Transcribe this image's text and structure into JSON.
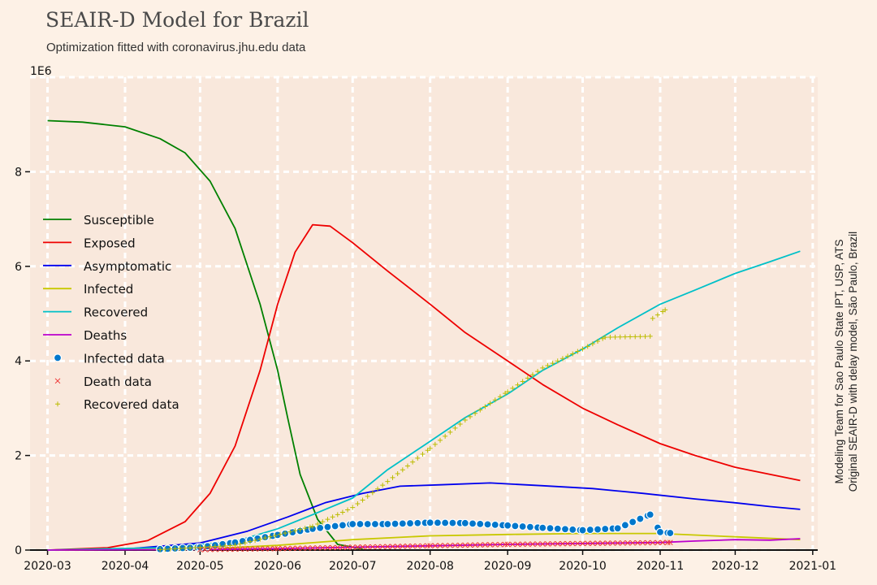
{
  "title": "SEAIR-D Model for Brazil",
  "subtitle": "Optimization fitted with coronavirus.jhu.edu data",
  "side_note": [
    "Modeling Team for Sao Paulo State IPT, USP, ATS",
    "Original SEAIR-D with delay model, São Paulo, Brazil"
  ],
  "colors": {
    "background": "#fdf1e6",
    "plot_bg": "#f9e8dc",
    "grid": "#ffffff"
  },
  "chart_data": {
    "type": "line",
    "title": "SEAIR-D Model for Brazil",
    "xlabel": "",
    "ylabel": "",
    "y_multiplier_label": "1E6",
    "xlim": [
      "2020-02-23",
      "2021-01-03"
    ],
    "ylim": [
      0,
      10
    ],
    "grid": true,
    "legend_position": "center-left",
    "x_ticks": [
      "2020-03",
      "2020-04",
      "2020-05",
      "2020-06",
      "2020-07",
      "2020-08",
      "2020-09",
      "2020-10",
      "2020-11",
      "2020-12",
      "2021-01"
    ],
    "y_ticks": [
      0,
      2,
      4,
      6,
      8
    ],
    "series": [
      {
        "name": "Susceptible",
        "color": "#008000",
        "style": "line",
        "points": [
          [
            "2020-03-01",
            9.08
          ],
          [
            "2020-03-15",
            9.05
          ],
          [
            "2020-04-01",
            8.95
          ],
          [
            "2020-04-15",
            8.7
          ],
          [
            "2020-04-25",
            8.4
          ],
          [
            "2020-05-05",
            7.8
          ],
          [
            "2020-05-15",
            6.8
          ],
          [
            "2020-05-25",
            5.2
          ],
          [
            "2020-06-01",
            3.8
          ],
          [
            "2020-06-05",
            2.8
          ],
          [
            "2020-06-10",
            1.6
          ],
          [
            "2020-06-17",
            0.65
          ],
          [
            "2020-06-25",
            0.12
          ],
          [
            "2020-07-05",
            0.02
          ]
        ]
      },
      {
        "name": "Exposed",
        "color": "#ee0000",
        "style": "line",
        "points": [
          [
            "2020-03-01",
            0.0
          ],
          [
            "2020-03-25",
            0.05
          ],
          [
            "2020-04-10",
            0.2
          ],
          [
            "2020-04-25",
            0.6
          ],
          [
            "2020-05-05",
            1.2
          ],
          [
            "2020-05-15",
            2.2
          ],
          [
            "2020-05-25",
            3.8
          ],
          [
            "2020-06-01",
            5.2
          ],
          [
            "2020-06-08",
            6.3
          ],
          [
            "2020-06-15",
            6.88
          ],
          [
            "2020-06-22",
            6.85
          ],
          [
            "2020-07-01",
            6.5
          ],
          [
            "2020-07-15",
            5.9
          ],
          [
            "2020-08-01",
            5.2
          ],
          [
            "2020-08-15",
            4.6
          ],
          [
            "2020-09-01",
            4.0
          ],
          [
            "2020-09-15",
            3.5
          ],
          [
            "2020-10-01",
            3.0
          ],
          [
            "2020-10-15",
            2.65
          ],
          [
            "2020-11-01",
            2.25
          ],
          [
            "2020-11-15",
            2.0
          ],
          [
            "2020-12-01",
            1.75
          ],
          [
            "2020-12-15",
            1.6
          ],
          [
            "2020-12-27",
            1.47
          ]
        ]
      },
      {
        "name": "Asymptomatic",
        "color": "#0000ee",
        "style": "line",
        "points": [
          [
            "2020-03-01",
            0.0
          ],
          [
            "2020-04-01",
            0.02
          ],
          [
            "2020-05-01",
            0.15
          ],
          [
            "2020-05-20",
            0.4
          ],
          [
            "2020-06-05",
            0.7
          ],
          [
            "2020-06-20",
            1.0
          ],
          [
            "2020-07-05",
            1.2
          ],
          [
            "2020-07-20",
            1.35
          ],
          [
            "2020-08-05",
            1.38
          ],
          [
            "2020-08-25",
            1.42
          ],
          [
            "2020-09-15",
            1.36
          ],
          [
            "2020-10-05",
            1.3
          ],
          [
            "2020-10-25",
            1.2
          ],
          [
            "2020-11-15",
            1.08
          ],
          [
            "2020-12-01",
            1.0
          ],
          [
            "2020-12-15",
            0.92
          ],
          [
            "2020-12-27",
            0.86
          ]
        ]
      },
      {
        "name": "Infected",
        "color": "#c8c800",
        "style": "line",
        "points": [
          [
            "2020-03-01",
            0.0
          ],
          [
            "2020-05-01",
            0.02
          ],
          [
            "2020-06-01",
            0.1
          ],
          [
            "2020-07-01",
            0.22
          ],
          [
            "2020-08-01",
            0.3
          ],
          [
            "2020-09-01",
            0.33
          ],
          [
            "2020-10-01",
            0.35
          ],
          [
            "2020-11-01",
            0.35
          ],
          [
            "2020-12-01",
            0.28
          ],
          [
            "2020-12-27",
            0.22
          ]
        ]
      },
      {
        "name": "Recovered",
        "color": "#00c0c8",
        "style": "line",
        "points": [
          [
            "2020-03-01",
            0.0
          ],
          [
            "2020-04-15",
            0.05
          ],
          [
            "2020-05-15",
            0.18
          ],
          [
            "2020-06-01",
            0.45
          ],
          [
            "2020-06-15",
            0.75
          ],
          [
            "2020-07-01",
            1.1
          ],
          [
            "2020-07-15",
            1.7
          ],
          [
            "2020-08-01",
            2.3
          ],
          [
            "2020-08-15",
            2.8
          ],
          [
            "2020-09-01",
            3.3
          ],
          [
            "2020-09-15",
            3.8
          ],
          [
            "2020-10-01",
            4.25
          ],
          [
            "2020-10-15",
            4.7
          ],
          [
            "2020-11-01",
            5.2
          ],
          [
            "2020-11-15",
            5.5
          ],
          [
            "2020-12-01",
            5.85
          ],
          [
            "2020-12-15",
            6.1
          ],
          [
            "2020-12-27",
            6.32
          ]
        ]
      },
      {
        "name": "Deaths",
        "color": "#bb00cc",
        "style": "line",
        "points": [
          [
            "2020-03-01",
            0.0
          ],
          [
            "2020-05-01",
            0.01
          ],
          [
            "2020-06-01",
            0.03
          ],
          [
            "2020-07-01",
            0.06
          ],
          [
            "2020-08-01",
            0.09
          ],
          [
            "2020-09-01",
            0.12
          ],
          [
            "2020-10-01",
            0.14
          ],
          [
            "2020-11-01",
            0.16
          ],
          [
            "2020-11-15",
            0.19
          ],
          [
            "2020-12-01",
            0.22
          ],
          [
            "2020-12-15",
            0.21
          ],
          [
            "2020-12-27",
            0.24
          ]
        ]
      },
      {
        "name": "Infected data",
        "color": "#0077cc",
        "style": "dot",
        "points": [
          [
            "2020-04-15",
            0.02
          ],
          [
            "2020-05-01",
            0.06
          ],
          [
            "2020-05-15",
            0.16
          ],
          [
            "2020-06-01",
            0.32
          ],
          [
            "2020-06-15",
            0.45
          ],
          [
            "2020-07-01",
            0.55
          ],
          [
            "2020-07-15",
            0.55
          ],
          [
            "2020-08-01",
            0.58
          ],
          [
            "2020-08-15",
            0.57
          ],
          [
            "2020-09-01",
            0.52
          ],
          [
            "2020-09-15",
            0.47
          ],
          [
            "2020-10-01",
            0.42
          ],
          [
            "2020-10-15",
            0.46
          ],
          [
            "2020-10-28",
            0.75
          ],
          [
            "2020-11-01",
            0.38
          ],
          [
            "2020-11-05",
            0.36
          ]
        ]
      },
      {
        "name": "Death data",
        "color": "#ee3333",
        "style": "cross",
        "points": [
          [
            "2020-05-01",
            0.01
          ],
          [
            "2020-06-01",
            0.03
          ],
          [
            "2020-07-01",
            0.06
          ],
          [
            "2020-08-01",
            0.09
          ],
          [
            "2020-09-01",
            0.12
          ],
          [
            "2020-10-01",
            0.14
          ],
          [
            "2020-11-05",
            0.16
          ]
        ]
      },
      {
        "name": "Recovered data",
        "color": "#bbbb00",
        "style": "plus",
        "points": [
          [
            "2020-04-15",
            0.01
          ],
          [
            "2020-05-15",
            0.1
          ],
          [
            "2020-06-15",
            0.5
          ],
          [
            "2020-07-01",
            0.9
          ],
          [
            "2020-07-15",
            1.45
          ],
          [
            "2020-08-01",
            2.15
          ],
          [
            "2020-08-15",
            2.75
          ],
          [
            "2020-09-01",
            3.35
          ],
          [
            "2020-09-15",
            3.85
          ],
          [
            "2020-10-01",
            4.25
          ],
          [
            "2020-10-10",
            4.5
          ],
          [
            "2020-10-28",
            4.52
          ],
          [
            "2020-10-29",
            4.9
          ],
          [
            "2020-11-03",
            5.08
          ]
        ]
      }
    ]
  }
}
